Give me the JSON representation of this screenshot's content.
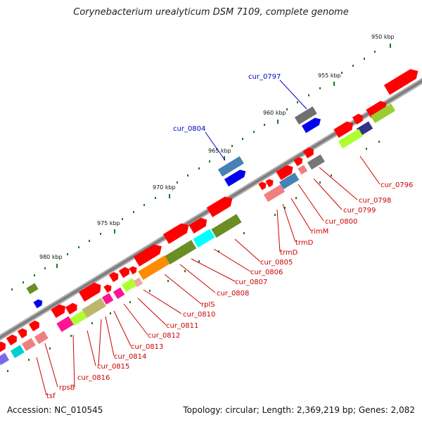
{
  "title": "Corynebacterium urealyticum DSM 7109, complete genome",
  "accession": "Accession: NC_010545",
  "summary": "Topology: circular; Length: 2,369,219 bp; Genes: 2,082",
  "ruler": {
    "labels": [
      "950 kbp",
      "955 kbp",
      "960 kbp",
      "965 kbp",
      "970 kbp",
      "975 kbp",
      "980 kbp"
    ]
  },
  "colors": {
    "backbone": "#8a8a8a",
    "red": "#ff0000",
    "red_light": "#f08080",
    "gene_label": "#cc0000",
    "blue_label": "#0000cc",
    "tick": "#1a7a1a"
  },
  "gene_labels_red": [
    "cur_0796",
    "cur_0798",
    "cur_0799",
    "cur_0800",
    "rimM",
    "trmD",
    "trmD",
    "cur_0805",
    "cur_0806",
    "cur_0807",
    "cur_0808",
    "rplS",
    "cur_0810",
    "cur_0811",
    "cur_0812",
    "cur_0813",
    "cur_0814",
    "cur_0815",
    "cur_0816",
    "rpsB",
    "tsf"
  ],
  "gene_labels_blue": [
    "cur_0797",
    "cur_0804"
  ]
}
